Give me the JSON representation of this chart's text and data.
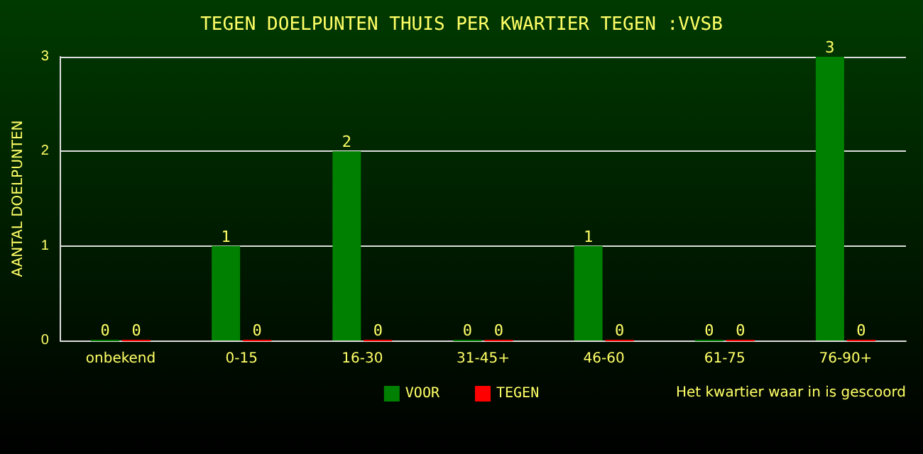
{
  "chart_data": {
    "type": "bar",
    "title": "TEGEN DOELPUNTEN THUIS PER KWARTIER TEGEN :VVSB",
    "xlabel": "Het kwartier waar in is gescoord",
    "ylabel": "AANTAL DOELPUNTEN",
    "categories": [
      "onbekend",
      "0-15",
      "16-30",
      "31-45+",
      "46-60",
      "61-75",
      "76-90+"
    ],
    "series": [
      {
        "name": "VOOR",
        "color": "#008000",
        "values": [
          0,
          1,
          2,
          0,
          1,
          0,
          3
        ]
      },
      {
        "name": "TEGEN",
        "color": "#ff0000",
        "values": [
          0,
          0,
          0,
          0,
          0,
          0,
          0
        ]
      }
    ],
    "ylim": [
      0,
      3
    ],
    "yticks": [
      0,
      1,
      2,
      3
    ],
    "grid": "y",
    "legend": "bottom",
    "data_labels": true
  }
}
